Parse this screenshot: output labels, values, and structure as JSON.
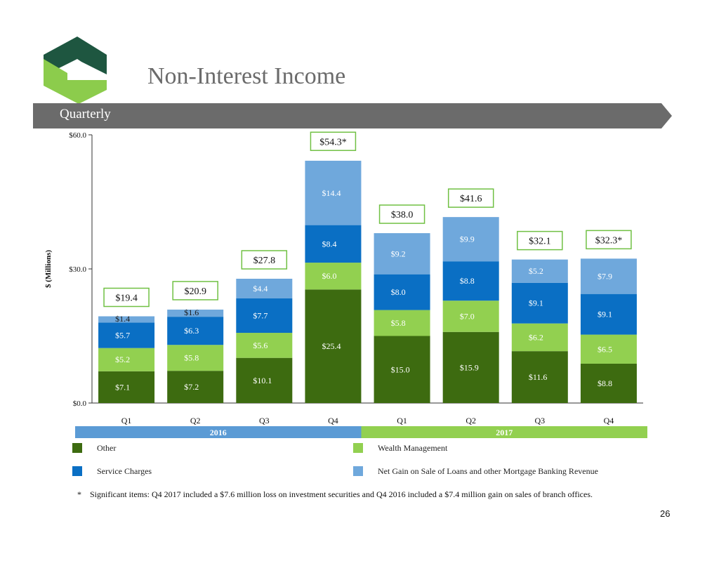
{
  "page": {
    "title": "Non-Interest Income",
    "section_label": "Quarterly",
    "footnote_marker": "*",
    "footnote": "Significant items: Q4 2017 included a $7.6 million loss on investment securities and Q4 2016 included a $7.4 million gain on sales of branch offices.",
    "page_number": "26"
  },
  "colors": {
    "other": "#3d6b10",
    "wealth_management": "#92d050",
    "service_charges": "#0a6fc4",
    "net_gain": "#6fa8dc",
    "year_2016": "#5b9bd5",
    "year_2017": "#92d050",
    "section_bar": "#6b6b6b",
    "title": "#6b6b6b",
    "total_box_border": "#70c043",
    "logo_dark": "#1e5640",
    "logo_light": "#8ccc4c"
  },
  "chart_data": {
    "type": "bar",
    "stacked": true,
    "categories": [
      "Q1",
      "Q2",
      "Q3",
      "Q4",
      "Q1",
      "Q2",
      "Q3",
      "Q4"
    ],
    "groups": [
      {
        "label": "2016",
        "start": 0,
        "end": 3
      },
      {
        "label": "2017",
        "start": 4,
        "end": 7
      }
    ],
    "series": [
      {
        "name": "Other",
        "color_key": "other",
        "values": [
          7.1,
          7.2,
          10.1,
          25.4,
          15.0,
          15.9,
          11.6,
          8.8
        ],
        "labels": [
          "$7.1",
          "$7.2",
          "$10.1",
          "$25.4",
          "$15.0",
          "$15.9",
          "$11.6",
          "$8.8"
        ]
      },
      {
        "name": "Wealth Management",
        "color_key": "wealth_management",
        "values": [
          5.2,
          5.8,
          5.6,
          6.0,
          5.8,
          7.0,
          6.2,
          6.5
        ],
        "labels": [
          "$5.2",
          "$5.8",
          "$5.6",
          "$6.0",
          "$5.8",
          "$7.0",
          "$6.2",
          "$6.5"
        ]
      },
      {
        "name": "Service Charges",
        "color_key": "service_charges",
        "values": [
          5.7,
          6.3,
          7.7,
          8.4,
          8.0,
          8.8,
          9.1,
          9.1
        ],
        "labels": [
          "$5.7",
          "$6.3",
          "$7.7",
          "$8.4",
          "$8.0",
          "$8.8",
          "$9.1",
          "$9.1"
        ]
      },
      {
        "name": "Net Gain on Sale of Loans and other Mortgage Banking Revenue",
        "color_key": "net_gain",
        "values": [
          1.4,
          1.6,
          4.4,
          14.4,
          9.2,
          9.9,
          5.2,
          7.9
        ],
        "labels": [
          "$1.4",
          "$1.6",
          "$4.4",
          "$14.4",
          "$9.2",
          "$9.9",
          "$5.2",
          "$7.9"
        ]
      }
    ],
    "totals": [
      19.4,
      20.9,
      27.8,
      54.3,
      38.0,
      41.6,
      32.1,
      32.3
    ],
    "total_labels": [
      "$19.4",
      "$20.9",
      "$27.8",
      "$54.3*",
      "$38.0",
      "$41.6",
      "$32.1",
      "$32.3*"
    ],
    "ylabel": "$ (Millions)",
    "ylim": [
      0,
      60
    ],
    "yticks": [
      0,
      30,
      60
    ],
    "ytick_labels": [
      "$0.0",
      "$30.0",
      "$60.0"
    ],
    "legend_order": [
      0,
      1,
      2,
      3
    ],
    "legend_placement": "bottom",
    "grid": false
  }
}
